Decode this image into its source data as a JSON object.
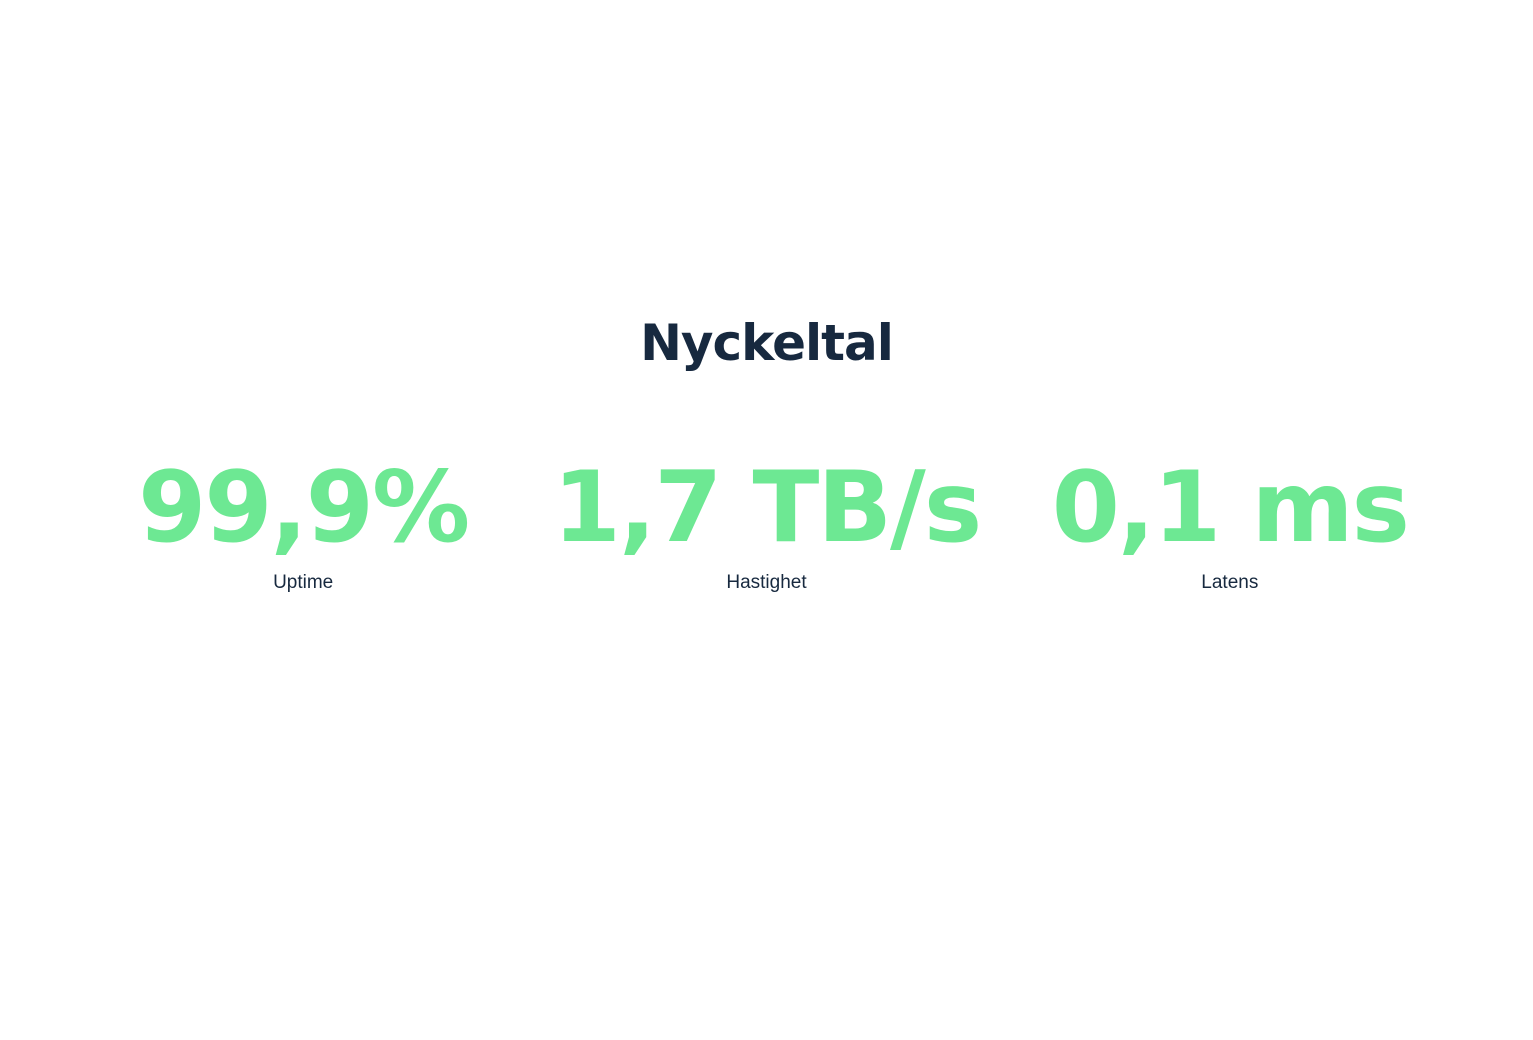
{
  "section": {
    "title": "Nyckeltal",
    "colors": {
      "accent_green": "#6DE893",
      "heading_navy": "#17293F",
      "background": "#FFFFFF"
    },
    "stats": [
      {
        "value": "99,9%",
        "label": "Uptime"
      },
      {
        "value": "1,7 TB/s",
        "label": "Hastighet"
      },
      {
        "value": "0,1 ms",
        "label": "Latens"
      }
    ]
  }
}
